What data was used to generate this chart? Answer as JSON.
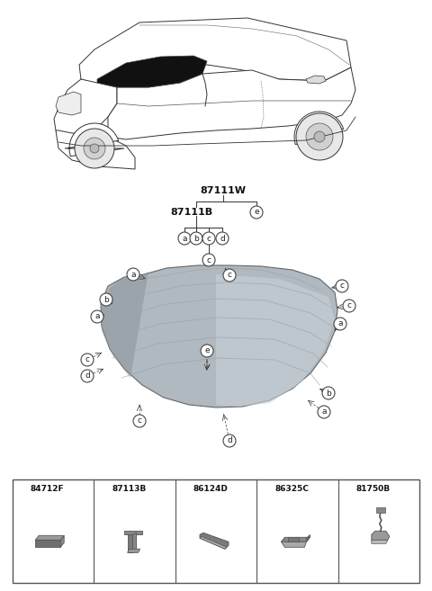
{
  "bg_color": "#ffffff",
  "part_labels": {
    "a": "84712F",
    "b": "87113B",
    "c": "86124D",
    "d": "86325C",
    "e": "81750B"
  },
  "tree_root": "87111W",
  "tree_child": "87111B",
  "glass_color_light": "#c8cfd5",
  "glass_color_dark": "#9aa4ad",
  "line_color": "#333333",
  "circle_bg": "#ffffff",
  "circle_edge": "#444444",
  "car_line_color": "#333333",
  "table_border": "#555555",
  "part_color": "#7a7a7a",
  "part_dark": "#555555"
}
